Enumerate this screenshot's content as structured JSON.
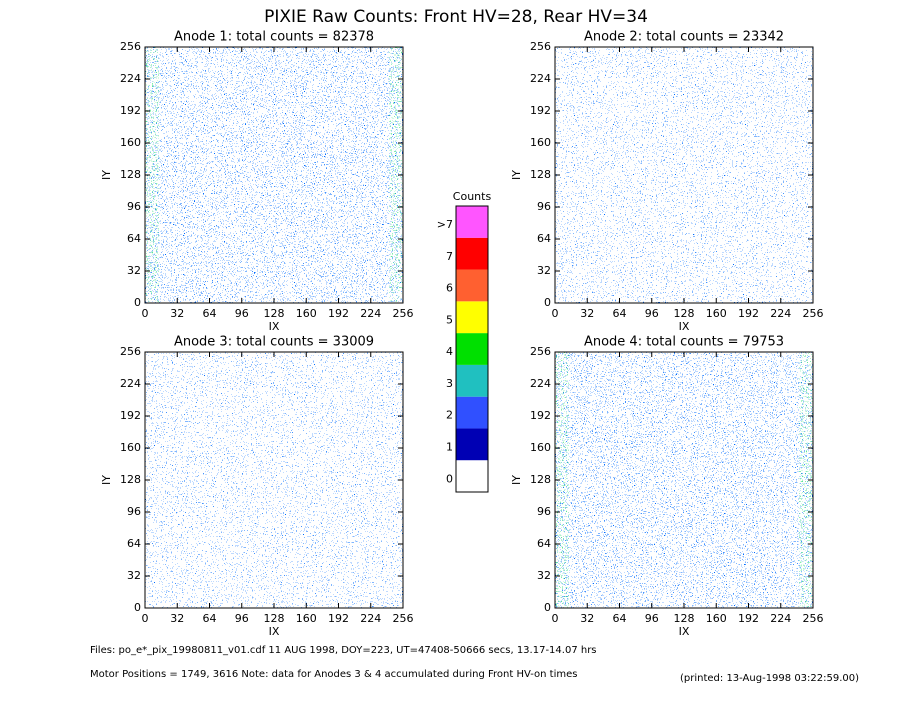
{
  "title": "PIXIE Raw Counts:  Front HV=28, Rear HV=34",
  "chart_data": [
    {
      "type": "heatmap",
      "title": "Anode 1: total counts = 82378",
      "x_label": "IX",
      "y_label": "IY",
      "xlim": [
        0,
        256
      ],
      "ylim": [
        0,
        256
      ],
      "xticks": [
        0,
        32,
        64,
        96,
        128,
        160,
        192,
        224,
        256
      ],
      "yticks": [
        0,
        32,
        64,
        96,
        128,
        160,
        192,
        224,
        256
      ]
    },
    {
      "type": "heatmap",
      "title": "Anode 2: total counts = 23342",
      "x_label": "IX",
      "y_label": "IY",
      "xlim": [
        0,
        256
      ],
      "ylim": [
        0,
        256
      ],
      "xticks": [
        0,
        32,
        64,
        96,
        128,
        160,
        192,
        224,
        256
      ],
      "yticks": [
        0,
        32,
        64,
        96,
        128,
        160,
        192,
        224,
        256
      ]
    },
    {
      "type": "heatmap",
      "title": "Anode 3: total counts = 33009",
      "x_label": "IX",
      "y_label": "IY",
      "xlim": [
        0,
        256
      ],
      "ylim": [
        0,
        256
      ],
      "xticks": [
        0,
        32,
        64,
        96,
        128,
        160,
        192,
        224,
        256
      ],
      "yticks": [
        0,
        32,
        64,
        96,
        128,
        160,
        192,
        224,
        256
      ]
    },
    {
      "type": "heatmap",
      "title": "Anode 4: total counts = 79753",
      "x_label": "IX",
      "y_label": "IY",
      "xlim": [
        0,
        256
      ],
      "ylim": [
        0,
        256
      ],
      "xticks": [
        0,
        32,
        64,
        96,
        128,
        160,
        192,
        224,
        256
      ],
      "yticks": [
        0,
        32,
        64,
        96,
        128,
        160,
        192,
        224,
        256
      ]
    }
  ],
  "colorbar": {
    "title": "Counts",
    "labels": [
      0,
      1,
      2,
      3,
      4,
      5,
      6,
      7,
      ">7"
    ],
    "colors": [
      "#ffffff",
      "#0000b4",
      "#3050ff",
      "#20c0c0",
      "#00e000",
      "#ffff00",
      "#ff6030",
      "#ff0000",
      "#ff55ff"
    ]
  },
  "footer": {
    "files": "Files: po_e*_pix_19980811_v01.cdf     11 AUG 1998, DOY=223, UT=47408-50666 secs, 13.17-14.07 hrs",
    "motor": "Motor Positions = 1749, 3616    Note: data for Anodes 3 & 4 accumulated during Front HV-on times",
    "printed": "(printed: 13-Aug-1998 03:22:59.00)"
  }
}
